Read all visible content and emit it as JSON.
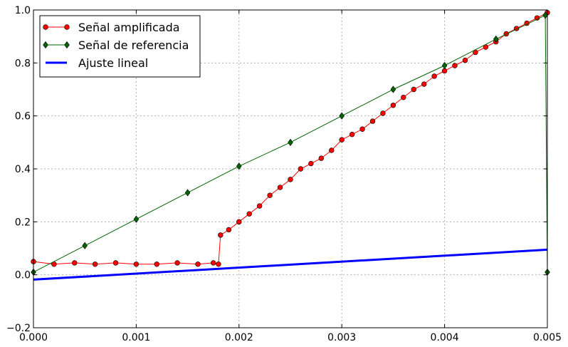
{
  "chart_data": {
    "type": "line",
    "title": "",
    "xlabel": "",
    "ylabel": "",
    "xlim": [
      0,
      0.005
    ],
    "ylim": [
      -0.2,
      1.0
    ],
    "xticks": [
      "0.000",
      "0.001",
      "0.002",
      "0.003",
      "0.004",
      "0.005"
    ],
    "yticks": [
      "−0.2",
      "0.0",
      "0.2",
      "0.4",
      "0.6",
      "0.8",
      "1.0"
    ],
    "grid": true,
    "legend_position": "top-left",
    "series": [
      {
        "name": "Señal amplificada",
        "color": "#ff0000",
        "marker": "circle",
        "x": [
          0,
          0.0002,
          0.0004,
          0.0006,
          0.0008,
          0.001,
          0.0012,
          0.0014,
          0.0016,
          0.00175,
          0.0018,
          0.00182,
          0.0019,
          0.002,
          0.0021,
          0.0022,
          0.0023,
          0.0024,
          0.0025,
          0.0026,
          0.0027,
          0.0028,
          0.0029,
          0.003,
          0.0031,
          0.0032,
          0.0033,
          0.0034,
          0.0035,
          0.0036,
          0.0037,
          0.0038,
          0.0039,
          0.004,
          0.0041,
          0.0042,
          0.0043,
          0.0044,
          0.0045,
          0.0046,
          0.0047,
          0.0048,
          0.0049,
          0.005
        ],
        "y": [
          0.05,
          0.04,
          0.045,
          0.04,
          0.045,
          0.04,
          0.04,
          0.045,
          0.04,
          0.045,
          0.04,
          0.15,
          0.17,
          0.2,
          0.23,
          0.26,
          0.3,
          0.33,
          0.36,
          0.4,
          0.42,
          0.44,
          0.47,
          0.51,
          0.53,
          0.55,
          0.58,
          0.61,
          0.64,
          0.67,
          0.7,
          0.72,
          0.75,
          0.77,
          0.79,
          0.81,
          0.84,
          0.86,
          0.88,
          0.91,
          0.93,
          0.95,
          0.97,
          0.99
        ]
      },
      {
        "name": "Señal de referencia",
        "color": "#006400",
        "marker": "diamond",
        "x": [
          0,
          0.0005,
          0.001,
          0.0015,
          0.002,
          0.0025,
          0.003,
          0.0035,
          0.004,
          0.0045,
          0.00498,
          0.005
        ],
        "y": [
          0.01,
          0.11,
          0.21,
          0.31,
          0.41,
          0.5,
          0.6,
          0.7,
          0.79,
          0.89,
          0.98,
          0.01
        ]
      },
      {
        "name": "Ajuste lineal",
        "color": "#0000ff",
        "marker": "none",
        "x": [
          0,
          0.005
        ],
        "y": [
          -0.018,
          0.095
        ]
      }
    ]
  }
}
